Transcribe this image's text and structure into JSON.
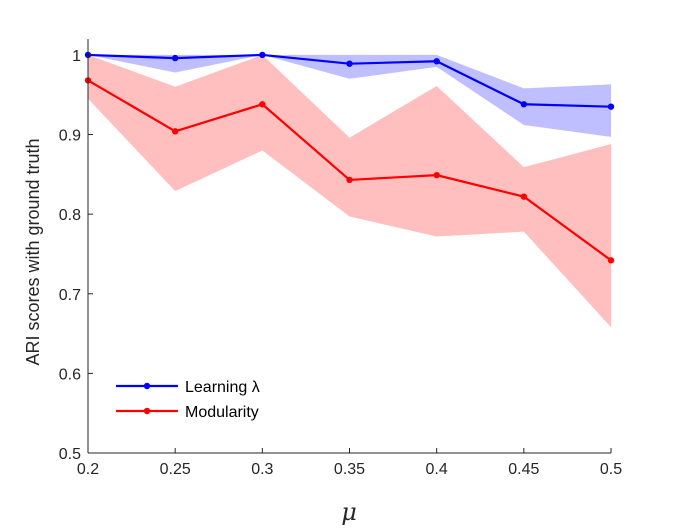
{
  "chart_data": {
    "type": "line",
    "title": "",
    "xlabel": "μ",
    "ylabel": "ARI scores with ground truth",
    "x": [
      0.2,
      0.25,
      0.3,
      0.35,
      0.4,
      0.45,
      0.5
    ],
    "xlim": [
      0.2,
      0.5
    ],
    "ylim": [
      0.5,
      1.02
    ],
    "xticks": [
      "0.2",
      "0.25",
      "0.3",
      "0.35",
      "0.4",
      "0.45",
      "0.5"
    ],
    "yticks": [
      "0.5",
      "0.6",
      "0.7",
      "0.8",
      "0.9",
      "1"
    ],
    "grid": false,
    "legend_position": "bottom-left",
    "series": [
      {
        "name": "Learning λ",
        "color": "#0000ff",
        "band_color": "#bfbfff",
        "values": [
          1.0,
          0.996,
          1.0,
          0.989,
          0.992,
          0.938,
          0.935
        ],
        "lower": [
          1.0,
          0.978,
          1.0,
          0.97,
          0.985,
          0.912,
          0.897
        ],
        "upper": [
          1.0,
          1.0,
          1.0,
          1.0,
          1.0,
          0.958,
          0.963
        ]
      },
      {
        "name": "Modularity",
        "color": "#ff0000",
        "band_color": "#ffbfbf",
        "values": [
          0.968,
          0.904,
          0.938,
          0.843,
          0.849,
          0.822,
          0.742
        ],
        "lower": [
          0.945,
          0.829,
          0.88,
          0.797,
          0.772,
          0.778,
          0.658
        ],
        "upper": [
          1.0,
          0.96,
          1.0,
          0.896,
          0.961,
          0.859,
          0.888
        ]
      }
    ]
  }
}
